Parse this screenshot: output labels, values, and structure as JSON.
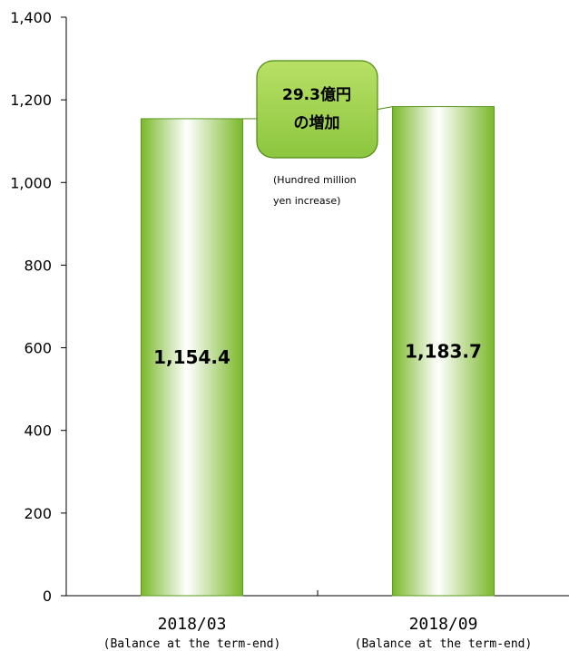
{
  "chart_data": {
    "type": "bar",
    "categories": [
      "2018/03",
      "2018/09"
    ],
    "category_sublabels": [
      "(Balance at the term-end)",
      "(Balance at the term-end)"
    ],
    "values": [
      1154.4,
      1183.7
    ],
    "value_labels": [
      "1,154.4",
      "1,183.7"
    ],
    "ylim": [
      0,
      1400
    ],
    "yticks": [
      0,
      200,
      400,
      600,
      800,
      1000,
      1200,
      1400
    ],
    "ytick_labels": [
      "0",
      "200",
      "400",
      "600",
      "800",
      "1,000",
      "1,200",
      "1,400"
    ],
    "grid": false,
    "bar_color": "#8cc63f",
    "bar_edge_color": "#5a9a1e",
    "callout": {
      "line1": "29.3億円",
      "line2": "の増加",
      "fill": "#9ccf3a",
      "border": "#4e8a12"
    },
    "note": {
      "line1": "(Hundred million",
      "line2": "yen increase)"
    }
  }
}
